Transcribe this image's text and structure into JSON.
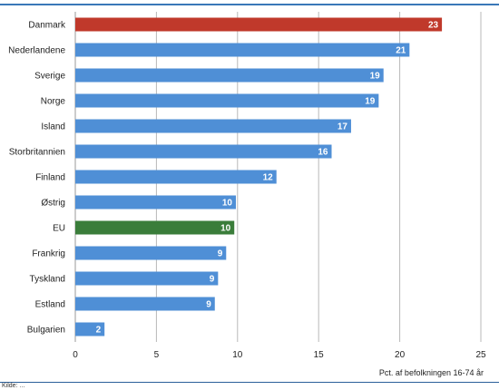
{
  "chart_data": {
    "type": "bar",
    "orientation": "horizontal",
    "categories": [
      "Danmark",
      "Nederlandene",
      "Sverige",
      "Norge",
      "Island",
      "Storbritannien",
      "Finland",
      "Østrig",
      "EU",
      "Frankrig",
      "Tyskland",
      "Estland",
      "Bulgarien"
    ],
    "values": [
      22.6,
      20.6,
      19.0,
      18.7,
      17.0,
      15.8,
      12.4,
      9.9,
      9.8,
      9.3,
      8.8,
      8.6,
      1.8
    ],
    "data_labels": [
      "23",
      "21",
      "19",
      "19",
      "17",
      "16",
      "12",
      "10",
      "10",
      "9",
      "9",
      "9",
      "2"
    ],
    "highlight": {
      "Danmark": "#c0392b",
      "EU": "#3a7d3a"
    },
    "bar_color": "#4f8fd6",
    "xlabel": "Pct. af befolkningen 16-74 år",
    "xlim": [
      0,
      25
    ],
    "xticks": [
      "0",
      "5",
      "10",
      "15",
      "20",
      "25"
    ],
    "grid": true
  },
  "source": "Kilde: ..."
}
